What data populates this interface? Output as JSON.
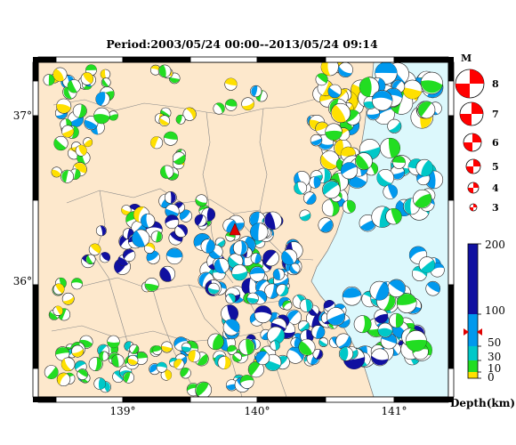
{
  "title": "Period:2003/05/24 00:00--2013/05/24 09:14",
  "map": {
    "lon_range": [
      138.35,
      141.4
    ],
    "lat_range": [
      35.3,
      37.35
    ],
    "lon_ticks": [
      {
        "value": 139,
        "label": "139°"
      },
      {
        "value": 140,
        "label": "140°"
      },
      {
        "value": 141,
        "label": "141°"
      }
    ],
    "lat_ticks": [
      {
        "value": 36,
        "label": "36°"
      },
      {
        "value": 37,
        "label": "37°"
      }
    ],
    "land_color": "#fde8cc",
    "sea_color": "#dcf8fc",
    "focus_event": {
      "lon": 139.84,
      "lat": 36.3,
      "color": "#e00000",
      "marker": "red-triangle"
    }
  },
  "magnitude_legend": {
    "title": "M",
    "items": [
      {
        "label": "8",
        "value": 8
      },
      {
        "label": "7",
        "value": 7
      },
      {
        "label": "6",
        "value": 6
      },
      {
        "label": "5",
        "value": 5
      },
      {
        "label": "4",
        "value": 4
      },
      {
        "label": "3",
        "value": 3
      }
    ],
    "color": "#ff0000"
  },
  "depth_scale": {
    "title": "Depth(km)",
    "ticks": [
      {
        "label": "200",
        "value": 200
      },
      {
        "label": "100",
        "value": 100
      },
      {
        "label": "50",
        "value": 50
      },
      {
        "label": "30",
        "value": 30
      },
      {
        "label": "10",
        "value": 10
      },
      {
        "label": "0",
        "value": 0
      }
    ],
    "bands": [
      {
        "from": 0,
        "to": 10,
        "color": "#ffe000"
      },
      {
        "from": 10,
        "to": 30,
        "color": "#22dd22"
      },
      {
        "from": 30,
        "to": 50,
        "color": "#00c8c8"
      },
      {
        "from": 50,
        "to": 100,
        "color": "#0099ee"
      },
      {
        "from": 100,
        "to": 200,
        "color": "#1010a0"
      }
    ],
    "marker_value": 70
  }
}
